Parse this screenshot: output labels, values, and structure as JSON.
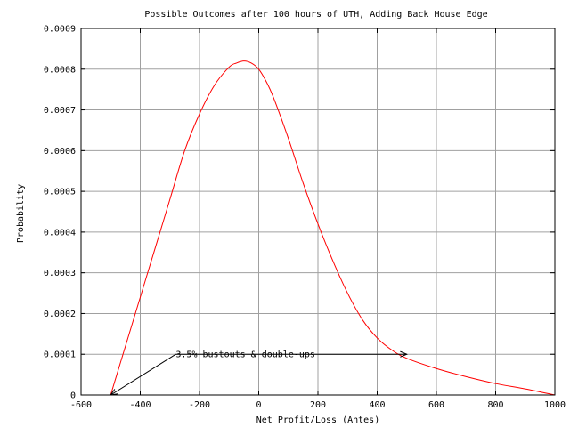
{
  "chart_data": {
    "type": "line",
    "title": "Possible Outcomes after 100 hours of UTH, Adding Back House Edge",
    "xlabel": "Net Profit/Loss (Antes)",
    "ylabel": "Probability",
    "xlim": [
      -600,
      1000
    ],
    "ylim": [
      0,
      0.0009
    ],
    "grid": true,
    "x_ticks": [
      "-600",
      "-400",
      "-200",
      "0",
      "200",
      "400",
      "600",
      "800",
      "1000"
    ],
    "y_ticks": [
      "0",
      "0.0001",
      "0.0002",
      "0.0003",
      "0.0004",
      "0.0005",
      "0.0006",
      "0.0007",
      "0.0008",
      "0.0009"
    ],
    "series": [
      {
        "color": "#ff0000",
        "points": [
          [
            -500,
            0.0
          ],
          [
            -450,
            0.00012
          ],
          [
            -400,
            0.00024
          ],
          [
            -350,
            0.00036
          ],
          [
            -300,
            0.00048
          ],
          [
            -250,
            0.0006
          ],
          [
            -200,
            0.00069
          ],
          [
            -150,
            0.00076
          ],
          [
            -100,
            0.000805
          ],
          [
            -75,
            0.000815
          ],
          [
            -50,
            0.00082
          ],
          [
            -25,
            0.000815
          ],
          [
            0,
            0.0008
          ],
          [
            25,
            0.00077
          ],
          [
            50,
            0.00073
          ],
          [
            100,
            0.00063
          ],
          [
            150,
            0.00052
          ],
          [
            200,
            0.00042
          ],
          [
            250,
            0.00033
          ],
          [
            300,
            0.00025
          ],
          [
            350,
            0.000185
          ],
          [
            400,
            0.00014
          ],
          [
            450,
            0.00011
          ],
          [
            500,
            9e-05
          ],
          [
            600,
            6.5e-05
          ],
          [
            700,
            4.5e-05
          ],
          [
            800,
            2.8e-05
          ],
          [
            900,
            1.5e-05
          ],
          [
            1000,
            0.0
          ]
        ]
      }
    ],
    "annotation": {
      "text": "3.5% bustouts & double-ups",
      "text_pos": [
        -280,
        0.0001
      ],
      "arrow_to_left": [
        -500,
        0.0
      ],
      "arrow_to_right": [
        500,
        0.0001
      ]
    }
  }
}
